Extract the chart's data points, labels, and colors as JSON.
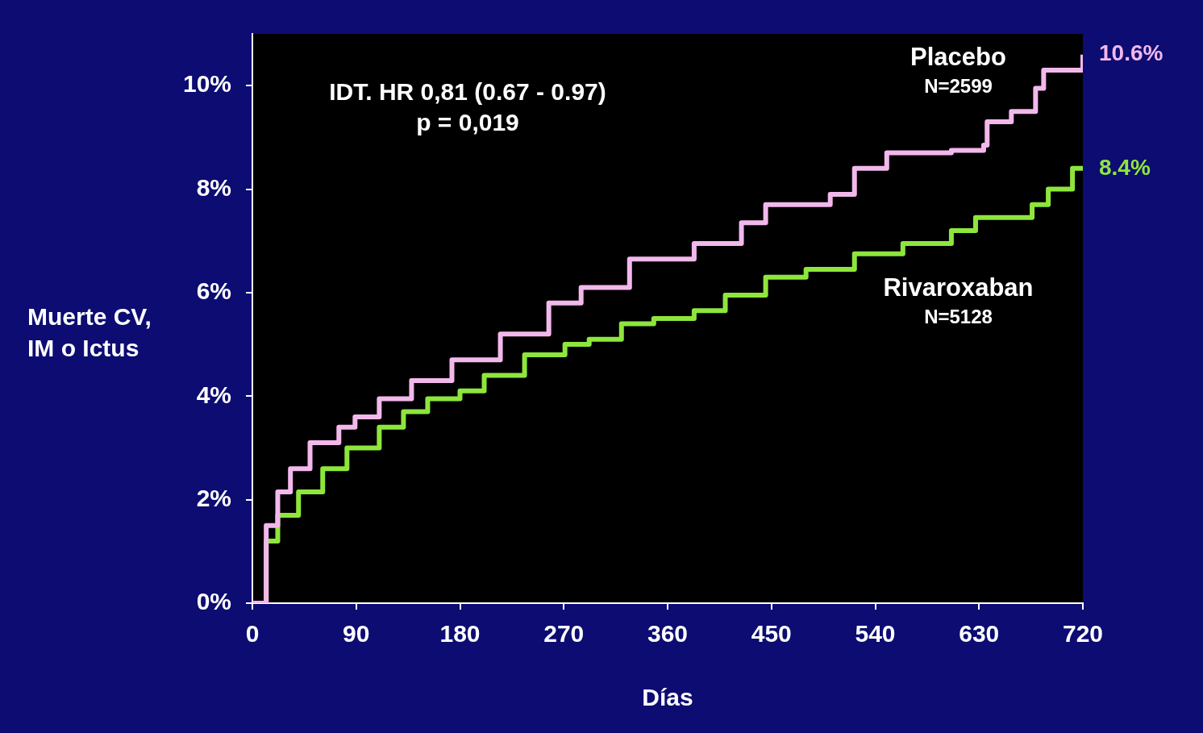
{
  "chart_data": {
    "type": "step",
    "xlabel": "Días",
    "ylabel": "Muerte CV, IM o Ictus",
    "xlim": [
      0,
      720
    ],
    "xticks": [
      0,
      90,
      180,
      270,
      360,
      450,
      540,
      630,
      720
    ],
    "ylim": [
      0,
      11
    ],
    "yticks": [
      {
        "value": 0,
        "label": "0%"
      },
      {
        "value": 2,
        "label": "2%"
      },
      {
        "value": 4,
        "label": "4%"
      },
      {
        "value": 6,
        "label": "6%"
      },
      {
        "value": 8,
        "label": "8%"
      },
      {
        "value": 10,
        "label": "10%"
      }
    ],
    "grid": false,
    "legend": false,
    "series": [
      {
        "name": "Placebo",
        "color": "#f2b8ec",
        "x": [
          0,
          12,
          22,
          33,
          50,
          75,
          89,
          110,
          138,
          173,
          215,
          257,
          285,
          327,
          383,
          424,
          445,
          501,
          522,
          550,
          606,
          634,
          637,
          658,
          679,
          686,
          720,
          720
        ],
        "values": [
          0,
          1.5,
          2.15,
          2.6,
          3.1,
          3.4,
          3.6,
          3.95,
          4.3,
          4.7,
          5.2,
          5.8,
          6.1,
          6.65,
          6.95,
          7.35,
          7.7,
          7.9,
          8.4,
          8.7,
          8.75,
          8.85,
          9.3,
          9.5,
          9.95,
          10.3,
          10.3,
          10.6
        ]
      },
      {
        "name": "Rivaroxaban",
        "color": "#8ee63c",
        "x": [
          0,
          12,
          22,
          40,
          61,
          82,
          110,
          131,
          152,
          180,
          201,
          236,
          271,
          292,
          320,
          348,
          383,
          410,
          445,
          480,
          522,
          564,
          606,
          627,
          676,
          690,
          711,
          720
        ],
        "values": [
          0,
          1.2,
          1.7,
          2.15,
          2.6,
          3.0,
          3.4,
          3.7,
          3.95,
          4.1,
          4.4,
          4.8,
          5.0,
          5.1,
          5.4,
          5.5,
          5.65,
          5.95,
          6.3,
          6.45,
          6.75,
          6.95,
          7.2,
          7.45,
          7.7,
          8.0,
          8.4,
          8.4
        ]
      }
    ],
    "annotations": [
      "IDT. HR 0,81 (0.67 - 0.97)",
      "p = 0,019",
      "N=2599",
      "N=5128",
      {
        "text": "10.6%",
        "x": 720,
        "y": 10.6
      },
      {
        "text": "8.4%",
        "x": 720,
        "y": 8.4
      }
    ]
  }
}
